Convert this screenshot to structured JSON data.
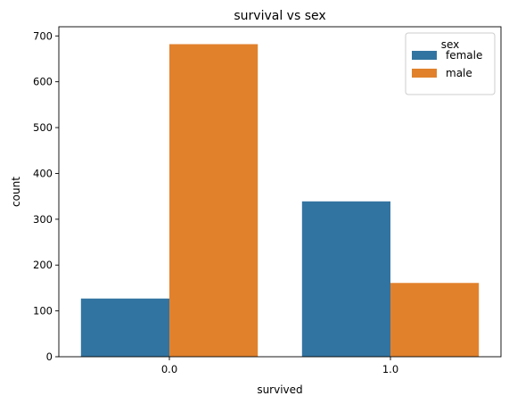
{
  "chart_data": {
    "type": "bar",
    "title": "survival vs sex",
    "xlabel": "survived",
    "ylabel": "count",
    "categories": [
      "0.0",
      "1.0"
    ],
    "ylim": [
      0,
      720
    ],
    "yticks": [
      0,
      100,
      200,
      300,
      400,
      500,
      600,
      700
    ],
    "grid": false,
    "legend": {
      "title": "sex",
      "placement": "top-right"
    },
    "series": [
      {
        "name": "female",
        "color": "#3274a1",
        "values": [
          127,
          339
        ]
      },
      {
        "name": "male",
        "color": "#e1812c",
        "values": [
          682,
          161
        ]
      }
    ]
  }
}
